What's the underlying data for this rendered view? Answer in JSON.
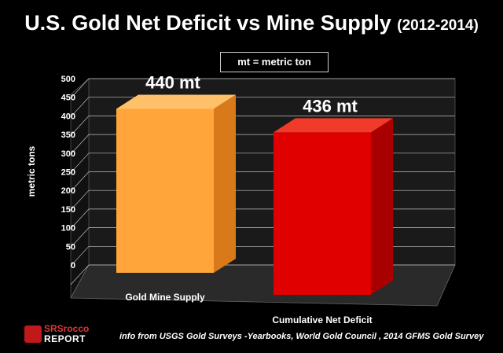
{
  "chart_data": {
    "type": "bar",
    "title": "U.S. Gold Net Deficit vs Mine Supply",
    "title_suffix": "(2012-2014)",
    "categories": [
      "Gold Mine Supply",
      "Cumulative Net Deficit"
    ],
    "values": [
      440,
      436
    ],
    "data_labels": [
      "440 mt",
      "436 mt"
    ],
    "ylabel": "metric tons",
    "xlabel": "",
    "ylim": [
      0,
      500
    ],
    "yticks": [
      "0",
      "50",
      "100",
      "150",
      "200",
      "250",
      "300",
      "350",
      "400",
      "450",
      "500"
    ],
    "legend_note": "mt = metric ton",
    "grid": true,
    "colors": {
      "bar_1_front": "#ffa53a",
      "bar_1_side": "#d97a1a",
      "bar_1_top": "#ffc06a",
      "bar_2_front": "#e00000",
      "bar_2_side": "#a80000",
      "bar_2_top": "#f03a2a",
      "wall": "#1a1a1a",
      "floor": "#2a2a2a",
      "grid": "#bfbfbf"
    }
  },
  "footer": {
    "source": "info from USGS Gold Surveys -Yearbooks, World Gold Council , 2014 GFMS Gold Survey"
  },
  "logo": {
    "line1": "SRSrocco",
    "line2": "REPORT"
  }
}
